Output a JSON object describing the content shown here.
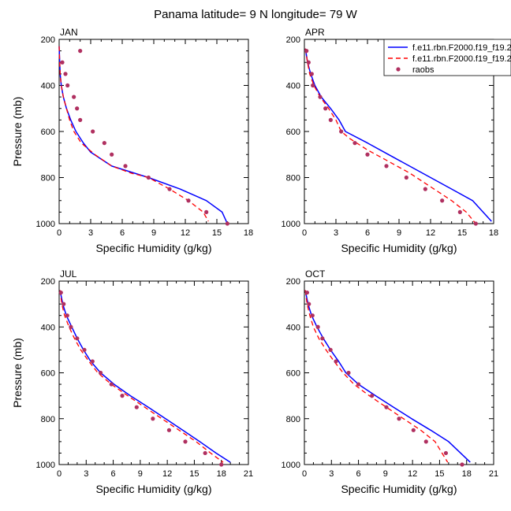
{
  "figure_title": "Panama  latitude= 9 N longitude= 79 W",
  "legend": {
    "entries": [
      {
        "label": "f.e11.rbn.F2000.f19_f19.2",
        "kind": "line",
        "color": "#0000ff",
        "dash": "solid"
      },
      {
        "label": "f.e11.rbn.F2000.f19_f19.2",
        "kind": "line",
        "color": "#ff0000",
        "dash": "dashed"
      },
      {
        "label": "raobs",
        "kind": "marker",
        "color": "#b03060"
      }
    ]
  },
  "colors": {
    "model_a": "#0000ff",
    "model_b": "#ff0000",
    "raobs": "#b03060"
  },
  "chart_data": [
    {
      "type": "line",
      "title": "JAN",
      "xlabel": "Specific Humidity (g/kg)",
      "ylabel": "Pressure (mb)",
      "xlim": [
        0,
        18
      ],
      "ylim": [
        200,
        1000
      ],
      "y_inverted": true,
      "xticks": [
        0,
        3,
        6,
        9,
        12,
        15,
        18
      ],
      "yticks": [
        200,
        400,
        600,
        800,
        1000
      ],
      "series": [
        {
          "name": "f.e11.rbn.F2000.f19_f19.2",
          "x": [
            0.0,
            0.05,
            0.1,
            0.2,
            0.4,
            0.7,
            1.1,
            1.6,
            2.3,
            3.0,
            5.0,
            8.5,
            11.5,
            14.0,
            15.5,
            16.0
          ],
          "y": [
            230,
            300,
            350,
            400,
            450,
            500,
            550,
            600,
            650,
            690,
            750,
            800,
            850,
            900,
            950,
            1000
          ]
        },
        {
          "name": "f.e11.rbn.F2000.f19_f19.2",
          "x": [
            0.0,
            0.05,
            0.1,
            0.2,
            0.4,
            0.7,
            1.0,
            1.4,
            2.1,
            3.4,
            5.0,
            6.8,
            8.5,
            10.5,
            12.3,
            13.7,
            14.2
          ],
          "y": [
            230,
            300,
            350,
            400,
            450,
            500,
            550,
            600,
            650,
            700,
            750,
            780,
            800,
            850,
            900,
            950,
            990
          ]
        },
        {
          "name": "raobs",
          "x": [
            2.0,
            0.3,
            0.6,
            0.8,
            1.4,
            1.7,
            2.0,
            3.2,
            4.3,
            5.0,
            6.3,
            8.5,
            10.5,
            12.3,
            14.0,
            16.0
          ],
          "y": [
            250,
            300,
            350,
            400,
            450,
            500,
            550,
            600,
            650,
            700,
            750,
            800,
            850,
            900,
            950,
            1000
          ]
        }
      ]
    },
    {
      "type": "line",
      "title": "APR",
      "xlabel": "Specific Humidity (g/kg)",
      "ylabel": "",
      "xlim": [
        0,
        18
      ],
      "ylim": [
        200,
        1000
      ],
      "y_inverted": true,
      "xticks": [
        0,
        3,
        6,
        9,
        12,
        15,
        18
      ],
      "yticks": [
        200,
        400,
        600,
        800,
        1000
      ],
      "series": [
        {
          "name": "f.e11.rbn.F2000.f19_f19.2",
          "x": [
            0.1,
            0.3,
            0.6,
            1.0,
            1.6,
            2.5,
            3.3,
            3.9,
            6.0,
            8.0,
            10.0,
            12.0,
            14.0,
            16.0,
            17.8
          ],
          "y": [
            240,
            300,
            350,
            400,
            450,
            500,
            550,
            600,
            650,
            700,
            750,
            800,
            850,
            900,
            990
          ]
        },
        {
          "name": "f.e11.rbn.F2000.f19_f19.2",
          "x": [
            0.1,
            0.3,
            0.5,
            0.9,
            1.5,
            2.3,
            3.0,
            3.5,
            4.3,
            6.0,
            8.0,
            10.0,
            12.0,
            14.0,
            15.4,
            16.3
          ],
          "y": [
            240,
            300,
            350,
            400,
            450,
            500,
            550,
            600,
            630,
            680,
            730,
            780,
            840,
            900,
            950,
            1000
          ]
        },
        {
          "name": "raobs",
          "x": [
            0.2,
            0.4,
            0.7,
            0.8,
            1.5,
            2.0,
            2.5,
            3.5,
            4.8,
            6.0,
            7.8,
            9.7,
            11.5,
            13.1,
            14.8,
            16.3
          ],
          "y": [
            250,
            300,
            350,
            400,
            450,
            500,
            550,
            600,
            650,
            700,
            750,
            800,
            850,
            900,
            950,
            1000
          ]
        }
      ]
    },
    {
      "type": "line",
      "title": "JUL",
      "xlabel": "Specific Humidity (g/kg)",
      "ylabel": "Pressure (mb)",
      "xlim": [
        0,
        21
      ],
      "ylim": [
        200,
        1000
      ],
      "y_inverted": true,
      "xticks": [
        0,
        3,
        6,
        9,
        12,
        15,
        18,
        21
      ],
      "yticks": [
        200,
        400,
        600,
        800,
        1000
      ],
      "series": [
        {
          "name": "f.e11.rbn.F2000.f19_f19.2",
          "x": [
            0.1,
            0.4,
            0.8,
            1.4,
            2.0,
            2.7,
            3.5,
            4.6,
            6.1,
            7.9,
            9.9,
            11.8,
            13.7,
            15.6,
            17.4,
            19.0
          ],
          "y": [
            240,
            300,
            350,
            400,
            450,
            500,
            550,
            600,
            650,
            700,
            750,
            800,
            850,
            900,
            950,
            990
          ]
        },
        {
          "name": "f.e11.rbn.F2000.f19_f19.2",
          "x": [
            0.1,
            0.3,
            0.6,
            1.1,
            1.7,
            2.4,
            3.3,
            4.3,
            5.8,
            7.6,
            9.5,
            11.4,
            13.3,
            15.2,
            16.8,
            18.2
          ],
          "y": [
            240,
            300,
            350,
            400,
            450,
            500,
            550,
            600,
            650,
            700,
            750,
            800,
            850,
            900,
            950,
            990
          ]
        },
        {
          "name": "raobs",
          "x": [
            0.2,
            0.5,
            0.9,
            1.3,
            2.0,
            2.8,
            3.7,
            4.6,
            5.8,
            7.0,
            8.6,
            10.4,
            12.2,
            14.0,
            16.2,
            18.0
          ],
          "y": [
            250,
            300,
            350,
            400,
            450,
            500,
            550,
            600,
            650,
            700,
            750,
            800,
            850,
            900,
            950,
            1000
          ]
        }
      ]
    },
    {
      "type": "line",
      "title": "OCT",
      "xlabel": "Specific Humidity (g/kg)",
      "ylabel": "",
      "xlim": [
        0,
        21
      ],
      "ylim": [
        200,
        1000
      ],
      "y_inverted": true,
      "xticks": [
        0,
        3,
        6,
        9,
        12,
        15,
        18,
        21
      ],
      "yticks": [
        200,
        400,
        600,
        800,
        1000
      ],
      "series": [
        {
          "name": "f.e11.rbn.F2000.f19_f19.2",
          "x": [
            0.1,
            0.4,
            0.8,
            1.4,
            2.1,
            2.9,
            3.8,
            4.6,
            6.0,
            7.9,
            9.9,
            11.9,
            14.0,
            16.0,
            18.4
          ],
          "y": [
            240,
            300,
            350,
            400,
            450,
            500,
            550,
            600,
            650,
            700,
            750,
            800,
            850,
            900,
            990
          ]
        },
        {
          "name": "f.e11.rbn.F2000.f19_f19.2",
          "x": [
            0.1,
            0.3,
            0.6,
            1.0,
            1.6,
            2.4,
            3.3,
            4.3,
            5.5,
            7.2,
            9.1,
            11.0,
            12.9,
            14.5,
            15.9
          ],
          "y": [
            240,
            300,
            350,
            400,
            450,
            500,
            550,
            600,
            650,
            700,
            750,
            800,
            850,
            900,
            990
          ]
        },
        {
          "name": "raobs",
          "x": [
            0.3,
            0.5,
            0.9,
            1.5,
            2.0,
            2.9,
            3.5,
            4.9,
            6.0,
            7.5,
            9.1,
            10.5,
            12.1,
            13.5,
            15.7,
            17.5
          ],
          "y": [
            250,
            300,
            350,
            400,
            450,
            500,
            550,
            600,
            650,
            700,
            750,
            800,
            850,
            900,
            950,
            1000
          ]
        }
      ]
    }
  ]
}
